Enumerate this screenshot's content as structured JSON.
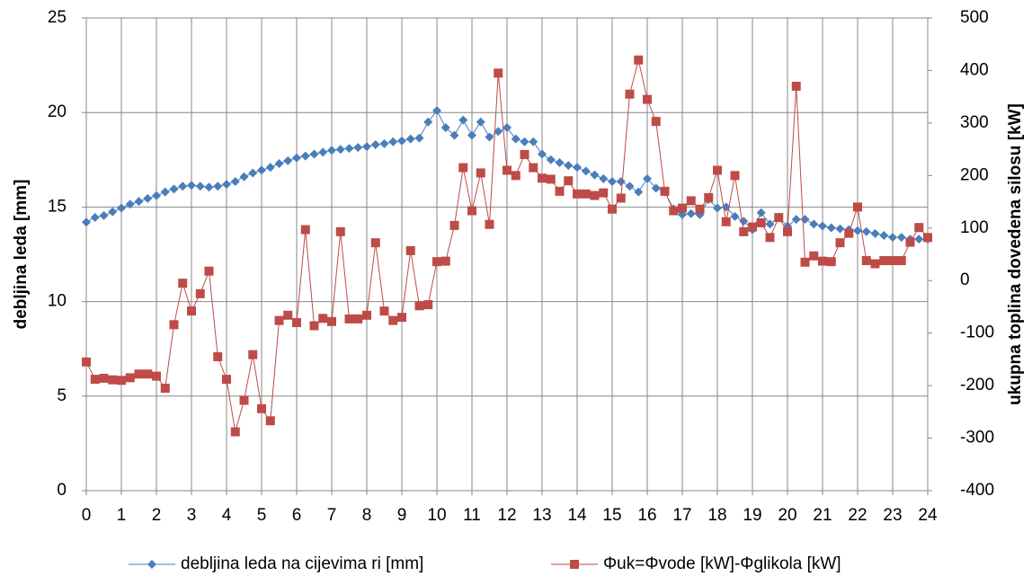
{
  "chart_data": {
    "type": "line",
    "x": [
      0,
      0.25,
      0.5,
      0.75,
      1,
      1.25,
      1.5,
      1.75,
      2,
      2.25,
      2.5,
      2.75,
      3,
      3.25,
      3.5,
      3.75,
      4,
      4.25,
      4.5,
      4.75,
      5,
      5.25,
      5.5,
      5.75,
      6,
      6.25,
      6.5,
      6.75,
      7,
      7.25,
      7.5,
      7.75,
      8,
      8.25,
      8.5,
      8.75,
      9,
      9.25,
      9.5,
      9.75,
      10,
      10.25,
      10.5,
      10.75,
      11,
      11.25,
      11.5,
      11.75,
      12,
      12.25,
      12.5,
      12.75,
      13,
      13.25,
      13.5,
      13.75,
      14,
      14.25,
      14.5,
      14.75,
      15,
      15.25,
      15.5,
      15.75,
      16,
      16.25,
      16.5,
      16.75,
      17,
      17.25,
      17.5,
      17.75,
      18,
      18.25,
      18.5,
      18.75,
      19,
      19.25,
      19.5,
      19.75,
      20,
      20.25,
      20.5,
      20.75,
      21,
      21.25,
      21.5,
      21.75,
      22,
      22.25,
      22.5,
      22.75,
      23,
      23.25,
      23.5,
      23.75,
      24
    ],
    "series": [
      {
        "name": "debljina leda na cijevima ri [mm]",
        "color": "#4a7ebb",
        "marker": "diamond",
        "values": [
          14.2,
          14.45,
          14.55,
          14.75,
          14.95,
          15.15,
          15.3,
          15.45,
          15.6,
          15.8,
          15.95,
          16.1,
          16.15,
          16.1,
          16.05,
          16.1,
          16.2,
          16.35,
          16.6,
          16.8,
          16.95,
          17.1,
          17.3,
          17.45,
          17.6,
          17.7,
          17.8,
          17.9,
          18.0,
          18.05,
          18.1,
          18.15,
          18.2,
          18.3,
          18.35,
          18.45,
          18.5,
          18.6,
          18.65,
          19.5,
          20.1,
          19.2,
          18.8,
          19.6,
          18.8,
          19.5,
          18.7,
          19.0,
          19.2,
          18.6,
          18.45,
          18.45,
          17.8,
          17.5,
          17.35,
          17.2,
          17.1,
          16.9,
          16.7,
          16.5,
          16.35,
          16.35,
          16.1,
          15.8,
          16.5,
          16.0,
          15.8,
          14.9,
          14.6,
          14.65,
          14.6,
          15.4,
          14.95,
          15.0,
          14.5,
          14.25,
          13.8,
          14.7,
          14.1,
          14.45,
          14.0,
          14.35,
          14.35,
          14.1,
          14.0,
          13.9,
          13.85,
          13.8,
          13.75,
          13.7,
          13.6,
          13.5,
          13.4,
          13.4,
          13.3,
          13.3,
          13.3
        ]
      },
      {
        "name": "Φuk=Φvode [kW]-Φglikola [kW]",
        "color": "#be4b48",
        "marker": "square",
        "axis": "y2",
        "values": [
          -155,
          -188,
          -186,
          -189,
          -190,
          -185,
          -178,
          -178,
          -182,
          -205,
          -84,
          -5,
          -58,
          -25,
          18,
          -145,
          -188,
          -288,
          -228,
          -141,
          -244,
          -267,
          -76,
          -66,
          -80,
          97,
          -86,
          -72,
          -78,
          93,
          -73,
          -73,
          -66,
          72,
          -58,
          -76,
          -70,
          57,
          -48,
          -46,
          36,
          37,
          105,
          215,
          133,
          205,
          107,
          395,
          210,
          200,
          240,
          215,
          195,
          193,
          170,
          190,
          165,
          165,
          162,
          167,
          136,
          157,
          355,
          420,
          345,
          303,
          170,
          133,
          138,
          152,
          136,
          158,
          210,
          112,
          200,
          93,
          102,
          110,
          82,
          120,
          93,
          370,
          35,
          47,
          37,
          36,
          72,
          90,
          140,
          38,
          32,
          38,
          38,
          38,
          73,
          101,
          82
        ]
      }
    ],
    "xlim": [
      0,
      24
    ],
    "xticks": [
      0,
      1,
      2,
      3,
      4,
      5,
      6,
      7,
      8,
      9,
      10,
      11,
      12,
      13,
      14,
      15,
      16,
      17,
      18,
      19,
      20,
      21,
      22,
      23,
      24
    ],
    "ylim": [
      0,
      25
    ],
    "yticks": [
      0,
      5,
      10,
      15,
      20,
      25
    ],
    "y2lim": [
      -400,
      500
    ],
    "y2ticks": [
      -400,
      -300,
      -200,
      -100,
      0,
      100,
      200,
      300,
      400,
      500
    ],
    "y_label": "debljina leda [mm]",
    "y2_label": "ukupna toplina dovedena silosu [kW]",
    "grid": true,
    "legend": "bottom"
  }
}
